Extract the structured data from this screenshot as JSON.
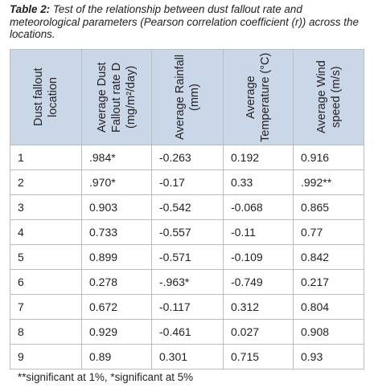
{
  "caption": {
    "label": "Table 2:",
    "text": "Test of the relationship between dust fallout rate and meteorological parameters (Pearson correlation coefficient (r)) across the locations."
  },
  "table": {
    "headers": [
      "Dust fallout location",
      "Average Dust Fallout rate D (mg/m²/day)",
      "Average Rainfall (mm)",
      "Average Temperature (°C)",
      "Average Wind speed (m/s)"
    ],
    "rows": [
      [
        "1",
        ".984*",
        "-0.263",
        "0.192",
        "0.916"
      ],
      [
        "2",
        ".970*",
        "-0.17",
        "0.33",
        ".992**"
      ],
      [
        "3",
        "0.903",
        "-0.542",
        "-0.068",
        "0.865"
      ],
      [
        "4",
        "0.733",
        "-0.557",
        "-0.11",
        "0.77"
      ],
      [
        "5",
        "0.899",
        "-0.571",
        "-0.109",
        "0.842"
      ],
      [
        "6",
        "0.278",
        "-.963*",
        "-0.749",
        "0.217"
      ],
      [
        "7",
        "0.672",
        "-0.117",
        "0.312",
        "0.804"
      ],
      [
        "8",
        "0.929",
        "-0.461",
        "0.027",
        "0.908"
      ],
      [
        "9",
        "0.89",
        "0.301",
        "0.715",
        "0.93"
      ]
    ]
  },
  "footnote": "**significant at 1%, *significant at 5%",
  "colors": {
    "header_fill": "#c9d7e9",
    "grid": "#bcbcbc",
    "text": "#231f20"
  }
}
